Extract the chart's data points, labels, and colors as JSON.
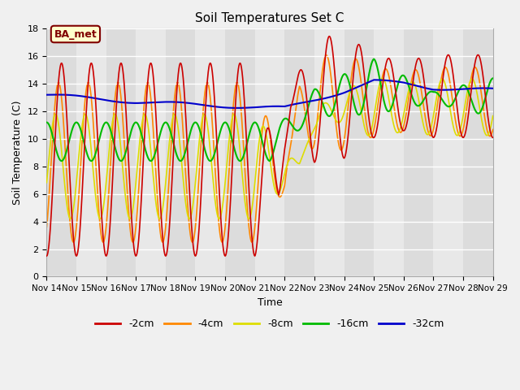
{
  "title": "Soil Temperatures Set C",
  "xlabel": "Time",
  "ylabel": "Soil Temperature (C)",
  "ylim": [
    0,
    18
  ],
  "xlim": [
    0,
    15
  ],
  "fig_bg": "#f0f0f0",
  "plot_bg_light": "#dcdcdc",
  "plot_bg_dark": "#e8e8e8",
  "grid_color": "#ffffff",
  "annotation_text": "BA_met",
  "annotation_bg": "#ffffcc",
  "annotation_border": "#800000",
  "annotation_text_color": "#800000",
  "xtick_labels": [
    "Nov 14",
    "Nov 15",
    "Nov 16",
    "Nov 17",
    "Nov 18",
    "Nov 19",
    "Nov 20",
    "Nov 21",
    "Nov 22",
    "Nov 23",
    "Nov 24",
    "Nov 25",
    "Nov 26",
    "Nov 27",
    "Nov 28",
    "Nov 29"
  ],
  "xtick_positions": [
    0,
    1,
    2,
    3,
    4,
    5,
    6,
    7,
    8,
    9,
    10,
    11,
    12,
    13,
    14,
    15
  ],
  "ytick_labels": [
    "0",
    "2",
    "4",
    "6",
    "8",
    "10",
    "12",
    "14",
    "16",
    "18"
  ],
  "ytick_positions": [
    0,
    2,
    4,
    6,
    8,
    10,
    12,
    14,
    16,
    18
  ],
  "legend_labels": [
    "-2cm",
    "-4cm",
    "-8cm",
    "-16cm",
    "-32cm"
  ],
  "colors": {
    "-2cm": "#cc0000",
    "-4cm": "#ff8800",
    "-8cm": "#dddd00",
    "-16cm": "#00bb00",
    "-32cm": "#0000cc"
  },
  "linewidth": 1.2
}
